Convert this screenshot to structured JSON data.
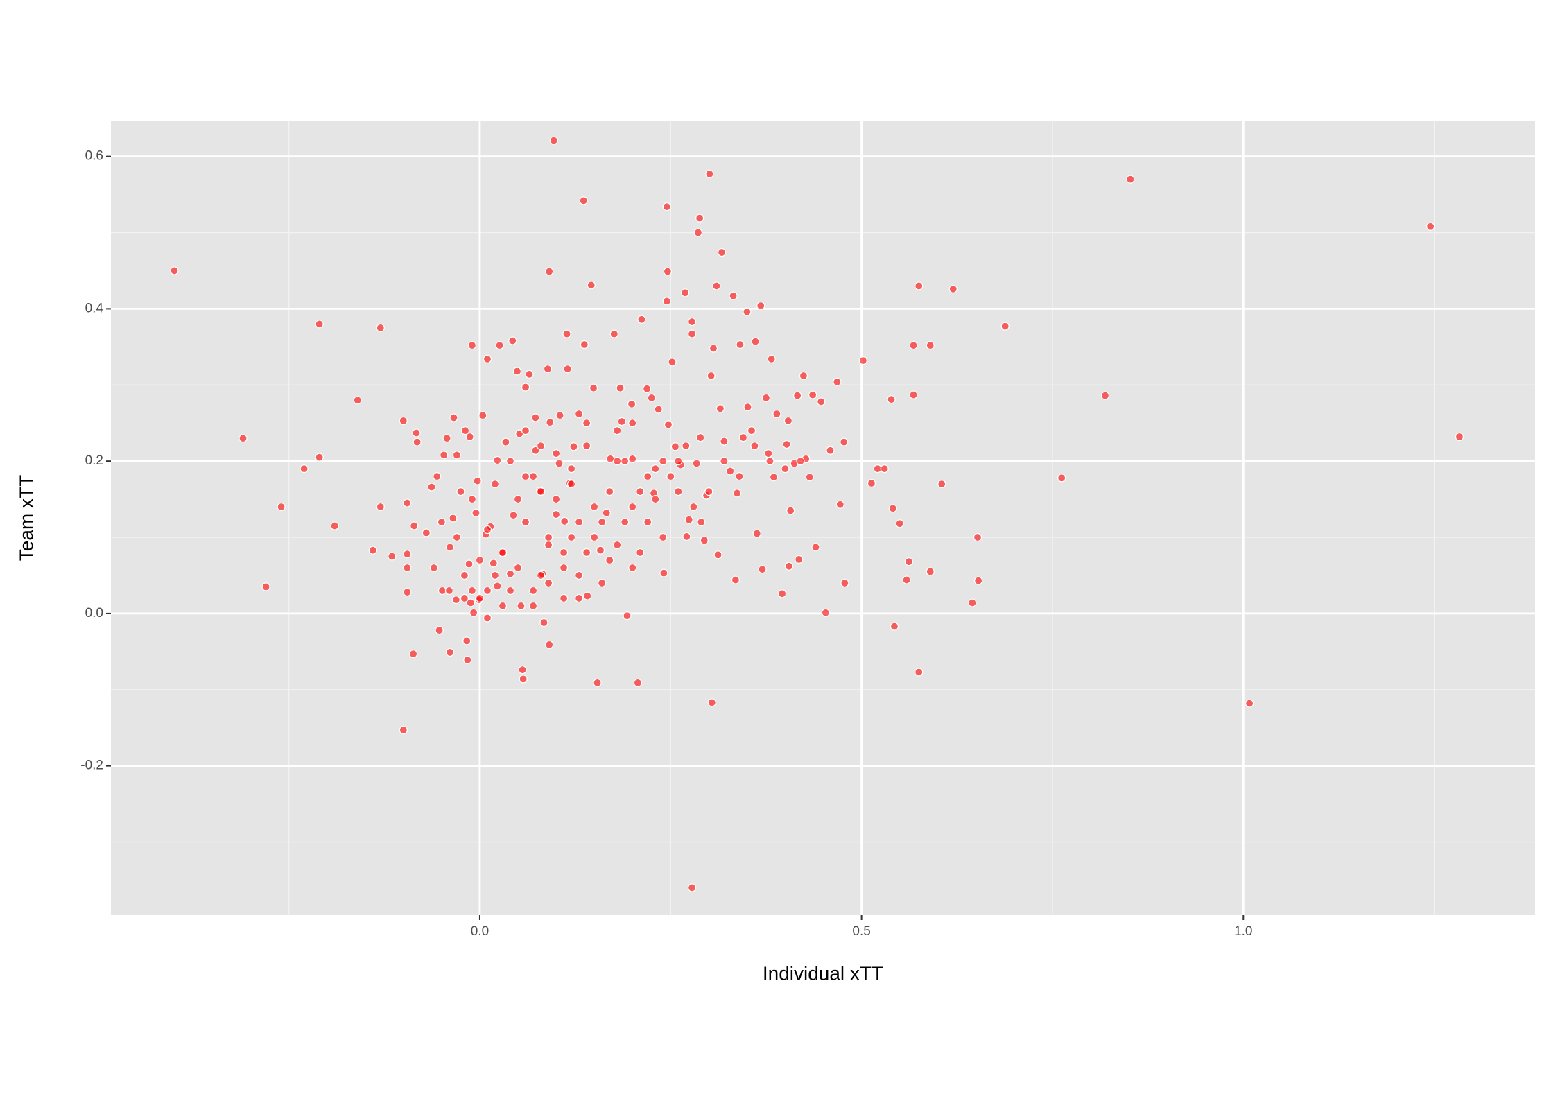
{
  "chart_data": {
    "type": "scatter",
    "x_label": "Individual xTT",
    "y_label": "Team xTT",
    "color": "#ff0000",
    "grid": true,
    "xlim": [
      -0.483,
      1.382
    ],
    "ylim": [
      -0.396,
      0.647
    ],
    "xticks": [
      {
        "value": 0,
        "label": "0.0"
      },
      0.5,
      {
        "value": 1,
        "label": "1.0"
      }
    ],
    "yticks": [
      -0.2,
      {
        "value": 0,
        "label": "0.0"
      },
      0.2,
      0.4,
      0.6
    ],
    "x_minor_ticks": [
      -0.25,
      0.25,
      0.75,
      1.25
    ],
    "y_minor_ticks": [
      -0.3,
      -0.1,
      0.1,
      0.3,
      0.5
    ],
    "x": [
      -0.4,
      -0.31,
      -0.28,
      -0.26,
      -0.23,
      -0.21,
      -0.21,
      -0.19,
      -0.16,
      -0.14,
      -0.13,
      -0.13,
      -0.115,
      -0.1,
      -0.1,
      -0.095,
      -0.095,
      -0.095,
      -0.095,
      -0.087,
      -0.083,
      -0.082,
      -0.086,
      -0.07,
      -0.063,
      -0.056,
      -0.053,
      -0.049,
      -0.047,
      -0.043,
      -0.039,
      -0.039,
      -0.034,
      -0.035,
      -0.031,
      -0.03,
      -0.025,
      -0.019,
      -0.017,
      -0.016,
      -0.014,
      -0.013,
      -0.01,
      -0.012,
      -0.008,
      -0.005,
      -0.003,
      -0.001,
      0.004,
      0.008,
      0.01,
      0.01,
      0.014,
      0.018,
      0.023,
      0.023,
      0.026,
      0.03,
      0.034,
      0.04,
      0.043,
      0.044,
      0.049,
      0.052,
      0.054,
      0.056,
      0.057,
      0.06,
      0.065,
      0.073,
      0.073,
      0.079,
      0.082,
      0.084,
      0.089,
      0.091,
      0.092,
      0.091,
      0.097,
      0.104,
      0.105,
      0.111,
      0.114,
      0.115,
      0.118,
      0.123,
      0.13,
      0.136,
      0.137,
      0.141,
      0.146,
      0.149,
      0.154,
      0.158,
      0.166,
      0.171,
      0.176,
      0.184,
      0.186,
      0.193,
      0.199,
      0.2,
      0.207,
      0.212,
      0.219,
      0.225,
      0.228,
      0.234,
      0.241,
      0.245,
      0.246,
      0.245,
      0.247,
      0.252,
      0.256,
      0.263,
      0.269,
      0.271,
      0.274,
      0.278,
      0.278,
      0.278,
      0.284,
      0.286,
      0.288,
      0.289,
      0.294,
      0.297,
      0.301,
      0.303,
      0.304,
      0.306,
      0.31,
      0.312,
      0.315,
      0.317,
      0.32,
      0.328,
      0.332,
      0.335,
      0.337,
      0.341,
      0.345,
      0.35,
      0.351,
      0.356,
      0.361,
      0.363,
      0.368,
      0.37,
      0.375,
      0.378,
      0.382,
      0.385,
      0.389,
      0.396,
      0.402,
      0.404,
      0.407,
      0.405,
      0.412,
      0.416,
      0.418,
      0.424,
      0.427,
      0.432,
      0.436,
      0.44,
      0.447,
      0.453,
      0.459,
      0.468,
      0.472,
      0.477,
      0.478,
      0.502,
      0.513,
      0.521,
      0.53,
      0.539,
      0.541,
      0.543,
      0.55,
      0.559,
      0.562,
      0.568,
      0.568,
      0.575,
      0.575,
      0.59,
      0.59,
      0.605,
      0.62,
      0.645,
      0.652,
      0.653,
      0.688,
      0.762,
      0.819,
      0.852,
      1.008,
      1.245,
      1.283,
      0.05,
      0.07,
      0.09,
      0.11,
      0.13,
      0.15,
      0.17,
      0.19,
      0.21,
      0.23,
      0.02,
      0.04,
      0.06,
      0.08,
      0.1,
      0.12,
      0.14,
      0.16,
      0.18,
      0.2,
      0.22,
      0.24,
      0.26,
      0.28,
      0,
      -0.02,
      -0.04,
      -0.01,
      0.03,
      0.05,
      0.07,
      0.09,
      0.11,
      0.13,
      0.15,
      0.17,
      0.19,
      0.21,
      0.23,
      0.25,
      0.27,
      0.29,
      0.06,
      0.08,
      0.1,
      0.12,
      0.14,
      0.18,
      0.2,
      -0.03,
      -0.05,
      -0.06,
      0.01,
      0,
      0.02,
      0.04,
      0.06,
      0.08,
      0.1,
      0.12,
      0.14,
      0.16,
      0.18,
      0.2,
      0.22,
      0.24,
      0.26,
      0.3,
      0.32,
      0.34,
      0.36,
      0.38,
      0.4,
      0.42,
      0.07,
      0.09,
      0.11,
      0.13,
      -0.02,
      -0.01,
      0.03,
      0.01
    ],
    "values": [
      0.45,
      0.23,
      0.035,
      0.14,
      0.19,
      0.38,
      0.205,
      0.115,
      0.28,
      0.083,
      0.375,
      0.14,
      0.075,
      -0.153,
      0.253,
      0.145,
      0.078,
      0.06,
      0.028,
      -0.053,
      0.237,
      0.225,
      0.115,
      0.106,
      0.166,
      0.18,
      -0.022,
      0.03,
      0.208,
      0.23,
      0.087,
      -0.051,
      0.257,
      0.125,
      0.018,
      0.208,
      0.16,
      0.24,
      -0.036,
      -0.061,
      0.065,
      0.232,
      0.352,
      0.014,
      0.001,
      0.132,
      0.174,
      0.018,
      0.26,
      0.104,
      0.334,
      -0.006,
      0.114,
      0.066,
      0.201,
      0.036,
      0.352,
      0.079,
      0.225,
      0.052,
      0.358,
      0.129,
      0.318,
      0.236,
      0.01,
      -0.074,
      -0.086,
      0.297,
      0.314,
      0.214,
      0.257,
      0.161,
      0.052,
      -0.012,
      0.321,
      0.449,
      0.251,
      -0.041,
      0.621,
      0.197,
      0.26,
      0.121,
      0.367,
      0.321,
      0.171,
      0.219,
      0.262,
      0.542,
      0.353,
      0.023,
      0.431,
      0.296,
      -0.091,
      0.083,
      0.132,
      0.203,
      0.367,
      0.296,
      0.252,
      -0.003,
      0.275,
      0.203,
      -0.091,
      0.386,
      0.295,
      0.283,
      0.158,
      0.268,
      0.053,
      0.534,
      0.449,
      0.41,
      0.248,
      0.33,
      0.219,
      0.195,
      0.421,
      0.101,
      0.123,
      -0.36,
      0.383,
      0.367,
      0.197,
      0.5,
      0.519,
      0.231,
      0.096,
      0.155,
      0.577,
      0.312,
      -0.117,
      0.348,
      0.43,
      0.077,
      0.269,
      0.474,
      0.226,
      0.187,
      0.417,
      0.044,
      0.158,
      0.353,
      0.231,
      0.396,
      0.271,
      0.24,
      0.357,
      0.105,
      0.404,
      0.058,
      0.283,
      0.21,
      0.334,
      0.179,
      0.262,
      0.026,
      0.222,
      0.253,
      0.135,
      0.062,
      0.197,
      0.286,
      0.071,
      0.312,
      0.203,
      0.179,
      0.287,
      0.087,
      0.278,
      0.001,
      0.214,
      0.304,
      0.143,
      0.225,
      0.04,
      0.332,
      0.171,
      0.19,
      0.19,
      0.281,
      0.138,
      -0.017,
      0.118,
      0.044,
      0.068,
      0.352,
      0.287,
      0.43,
      -0.077,
      0.352,
      0.055,
      0.17,
      0.426,
      0.014,
      0.1,
      0.043,
      0.377,
      0.178,
      0.286,
      0.57,
      -0.118,
      0.508,
      0.232,
      0.15,
      0.18,
      0.1,
      0.08,
      0.05,
      0.14,
      0.07,
      0.12,
      0.16,
      0.19,
      0.05,
      0.03,
      0.12,
      0.05,
      0.15,
      0.17,
      0.22,
      0.04,
      0.09,
      0.14,
      0.18,
      0.2,
      0.16,
      0.14,
      0.02,
      0.05,
      0.03,
      0.15,
      0.08,
      0.06,
      0.03,
      0.04,
      0.02,
      0.12,
      0.1,
      0.16,
      0.2,
      0.08,
      0.15,
      0.18,
      0.22,
      0.12,
      0.24,
      0.22,
      0.21,
      0.19,
      0.25,
      0.24,
      0.25,
      0.1,
      0.12,
      0.06,
      0.11,
      0.07,
      0.17,
      0.2,
      0.18,
      0.16,
      0.13,
      0.1,
      0.08,
      0.12,
      0.2,
      0.06,
      0.12,
      0.1,
      0.2,
      0.16,
      0.2,
      0.18,
      0.22,
      0.2,
      0.19,
      0.2,
      0.01,
      0.09,
      0.06,
      0.02,
      0.02,
      0.03,
      0.01,
      0.03
    ]
  }
}
